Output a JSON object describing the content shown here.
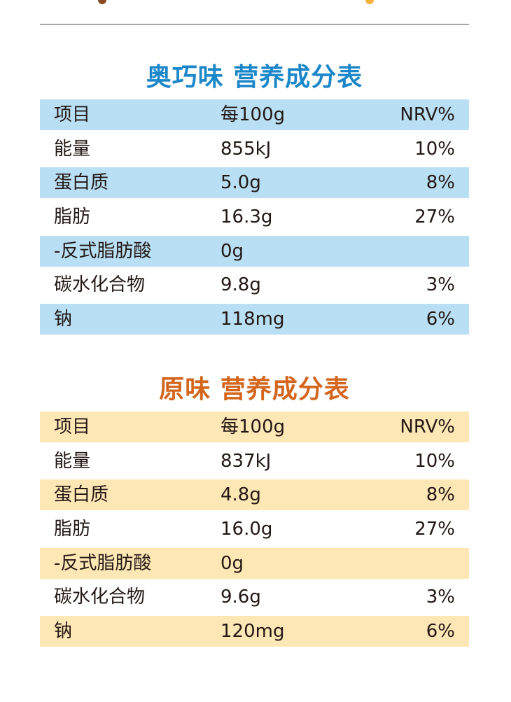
{
  "sections": [
    {
      "title": "奥巧味  营养成分表",
      "header": {
        "item": "项目",
        "per": "每100g",
        "nrv": "NRV%"
      },
      "rows": [
        {
          "item": "能量",
          "per": "855kJ",
          "nrv": "10%"
        },
        {
          "item": "蛋白质",
          "per": "5.0g",
          "nrv": "8%"
        },
        {
          "item": "脂肪",
          "per": "16.3g",
          "nrv": "27%"
        },
        {
          "item": "-反式脂肪酸",
          "per": "0g",
          "nrv": ""
        },
        {
          "item": "碳水化合物",
          "per": "9.8g",
          "nrv": "3%"
        },
        {
          "item": "钠",
          "per": "118mg",
          "nrv": "6%"
        }
      ]
    },
    {
      "title": "原味  营养成分表",
      "header": {
        "item": "项目",
        "per": "每100g",
        "nrv": "NRV%"
      },
      "rows": [
        {
          "item": "能量",
          "per": "837kJ",
          "nrv": "10%"
        },
        {
          "item": "蛋白质",
          "per": "4.8g",
          "nrv": "8%"
        },
        {
          "item": "脂肪",
          "per": "16.0g",
          "nrv": "27%"
        },
        {
          "item": "-反式脂肪酸",
          "per": "0g",
          "nrv": ""
        },
        {
          "item": "碳水化合物",
          "per": "9.6g",
          "nrv": "3%"
        },
        {
          "item": "钠",
          "per": "120mg",
          "nrv": "6%"
        }
      ]
    }
  ],
  "colors": {
    "oreo_title": "#1b87c9",
    "oreo_shade": "#b8dff4",
    "original_title": "#d3651d",
    "original_shade": "#fde7b5",
    "text": "#231815"
  }
}
